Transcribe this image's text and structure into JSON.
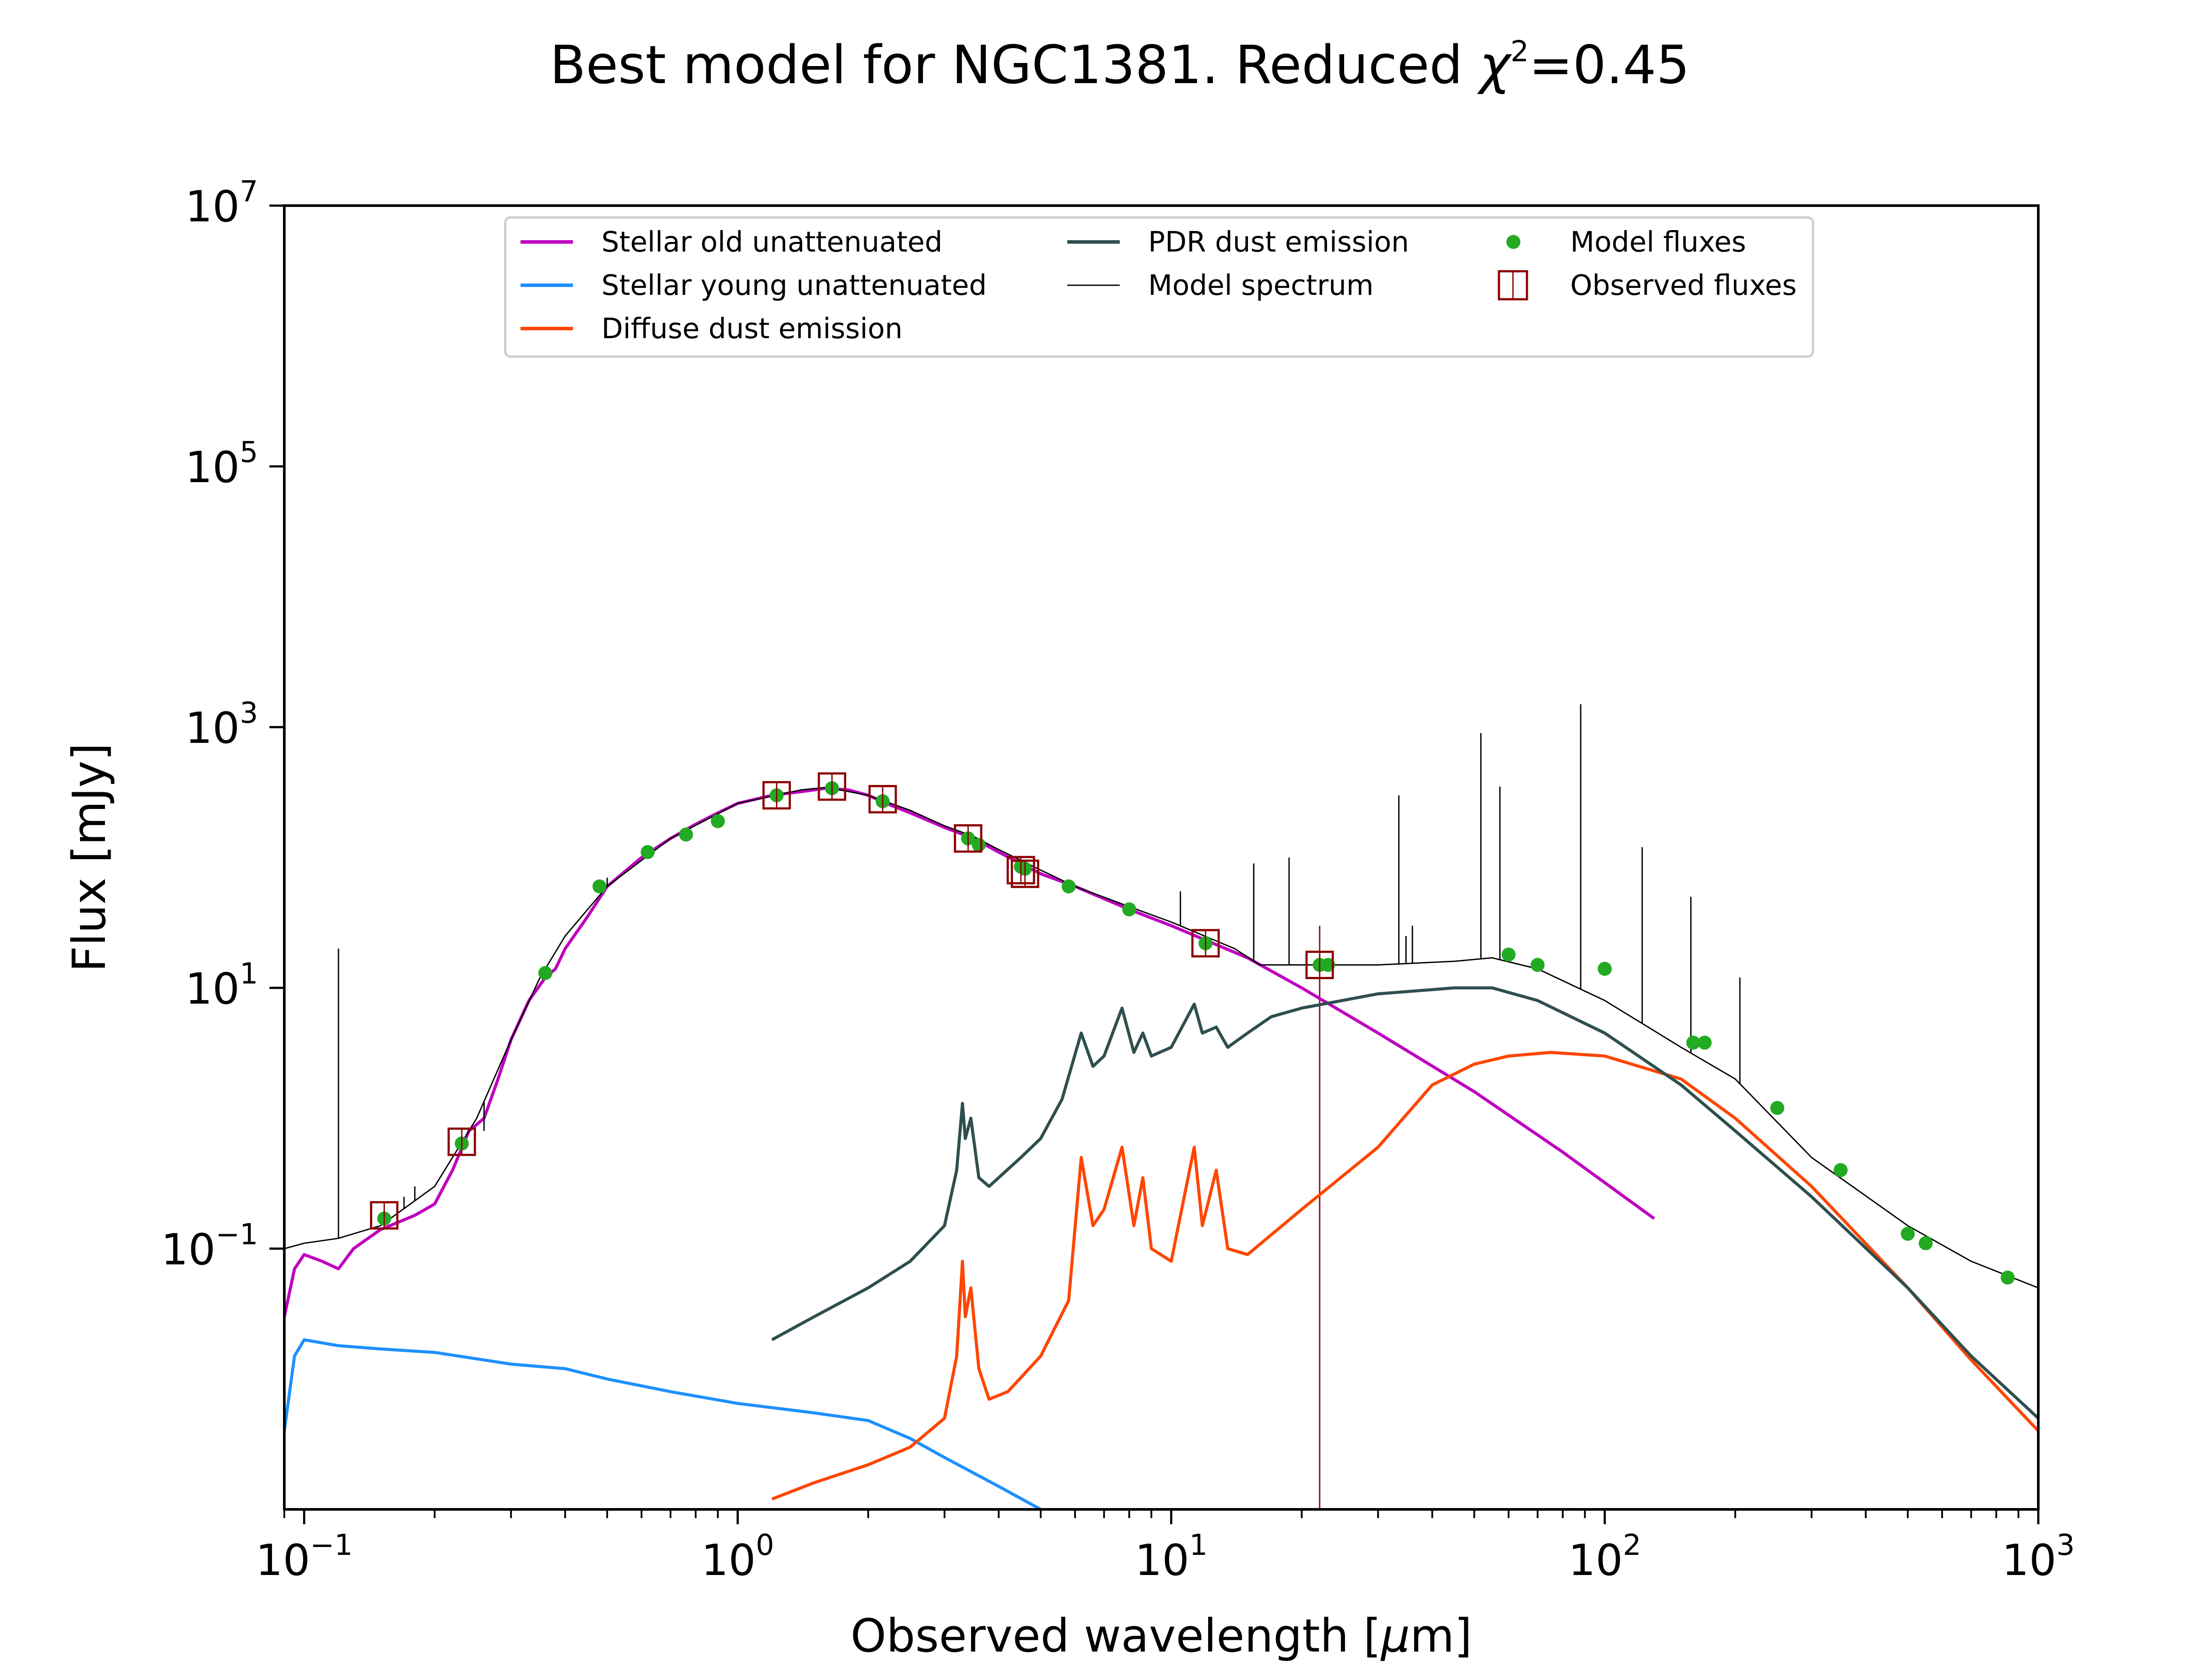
{
  "chart_data": {
    "type": "line",
    "title_text": "Best model for NGC1381. Reduced ",
    "title_symbol": "χ",
    "title_power": "2",
    "title_value": "=0.45",
    "xlabel_text": "Observed wavelength [",
    "xlabel_unit": "μ",
    "xlabel_rest": "m]",
    "ylabel": "Flux [mJy]",
    "x_scale": "log",
    "y_scale": "log",
    "xlim": [
      0.09,
      1000
    ],
    "ylim": [
      0.001,
      10000000
    ],
    "x_ticks": [
      {
        "base": "10",
        "exp": "−1",
        "value": 0.1
      },
      {
        "base": "10",
        "exp": "0",
        "value": 1
      },
      {
        "base": "10",
        "exp": "1",
        "value": 10
      },
      {
        "base": "10",
        "exp": "2",
        "value": 100
      },
      {
        "base": "10",
        "exp": "3",
        "value": 1000
      }
    ],
    "y_ticks": [
      {
        "base": "10",
        "exp": "−1",
        "value": 0.1
      },
      {
        "base": "10",
        "exp": "1",
        "value": 10
      },
      {
        "base": "10",
        "exp": "3",
        "value": 1000
      },
      {
        "base": "10",
        "exp": "5",
        "value": 100000
      },
      {
        "base": "10",
        "exp": "7",
        "value": 10000000
      }
    ],
    "grid": false,
    "legend_position": "top-center",
    "series": [
      {
        "name": "Stellar old unattenuated",
        "color": "#bf00bf",
        "points": [
          [
            0.09,
            0.03
          ],
          [
            0.095,
            0.07
          ],
          [
            0.1,
            0.09
          ],
          [
            0.11,
            0.08
          ],
          [
            0.12,
            0.07
          ],
          [
            0.13,
            0.1
          ],
          [
            0.15,
            0.14
          ],
          [
            0.18,
            0.18
          ],
          [
            0.2,
            0.22
          ],
          [
            0.22,
            0.4
          ],
          [
            0.24,
            0.8
          ],
          [
            0.26,
            1.0
          ],
          [
            0.28,
            2.0
          ],
          [
            0.3,
            4.0
          ],
          [
            0.33,
            8.0
          ],
          [
            0.36,
            12
          ],
          [
            0.38,
            14
          ],
          [
            0.4,
            20
          ],
          [
            0.45,
            35
          ],
          [
            0.5,
            60
          ],
          [
            0.6,
            100
          ],
          [
            0.7,
            140
          ],
          [
            0.8,
            180
          ],
          [
            0.9,
            220
          ],
          [
            1.0,
            260
          ],
          [
            1.2,
            300
          ],
          [
            1.4,
            320
          ],
          [
            1.6,
            340
          ],
          [
            1.8,
            330
          ],
          [
            2.0,
            300
          ],
          [
            2.2,
            260
          ],
          [
            2.5,
            220
          ],
          [
            3.0,
            170
          ],
          [
            3.5,
            140
          ],
          [
            4.0,
            110
          ],
          [
            4.5,
            90
          ],
          [
            5.0,
            75
          ],
          [
            6.0,
            60
          ],
          [
            8.0,
            40
          ],
          [
            10,
            30
          ],
          [
            15,
            17
          ],
          [
            20,
            10
          ],
          [
            30,
            4.5
          ],
          [
            50,
            1.6
          ],
          [
            80,
            0.55
          ],
          [
            130,
            0.17
          ]
        ]
      },
      {
        "name": "Stellar young unattenuated",
        "color": "#1e90ff",
        "points": [
          [
            0.09,
            0.004
          ],
          [
            0.095,
            0.015
          ],
          [
            0.1,
            0.02
          ],
          [
            0.12,
            0.018
          ],
          [
            0.15,
            0.017
          ],
          [
            0.2,
            0.016
          ],
          [
            0.3,
            0.013
          ],
          [
            0.4,
            0.012
          ],
          [
            0.5,
            0.01
          ],
          [
            0.7,
            0.008
          ],
          [
            1.0,
            0.0065
          ],
          [
            1.5,
            0.0055
          ],
          [
            2.0,
            0.0048
          ],
          [
            2.5,
            0.0035
          ],
          [
            3.0,
            0.0025
          ],
          [
            4.0,
            0.0015
          ],
          [
            5.0,
            0.001
          ]
        ]
      },
      {
        "name": "Diffuse dust emission",
        "color": "#ff4500",
        "points": [
          [
            1.2,
            0.0012
          ],
          [
            1.5,
            0.0016
          ],
          [
            2.0,
            0.0022
          ],
          [
            2.5,
            0.003
          ],
          [
            3.0,
            0.005
          ],
          [
            3.2,
            0.015
          ],
          [
            3.3,
            0.08
          ],
          [
            3.35,
            0.03
          ],
          [
            3.45,
            0.05
          ],
          [
            3.6,
            0.012
          ],
          [
            3.8,
            0.007
          ],
          [
            4.2,
            0.008
          ],
          [
            5.0,
            0.015
          ],
          [
            5.8,
            0.04
          ],
          [
            6.2,
            0.5
          ],
          [
            6.6,
            0.15
          ],
          [
            7.0,
            0.2
          ],
          [
            7.7,
            0.6
          ],
          [
            8.2,
            0.15
          ],
          [
            8.6,
            0.35
          ],
          [
            9.0,
            0.1
          ],
          [
            10,
            0.08
          ],
          [
            11.3,
            0.6
          ],
          [
            11.8,
            0.15
          ],
          [
            12.7,
            0.4
          ],
          [
            13.5,
            0.1
          ],
          [
            15,
            0.09
          ],
          [
            20,
            0.2
          ],
          [
            30,
            0.6
          ],
          [
            40,
            1.8
          ],
          [
            50,
            2.6
          ],
          [
            60,
            3.0
          ],
          [
            75,
            3.2
          ],
          [
            100,
            3.0
          ],
          [
            150,
            2.0
          ],
          [
            200,
            1.0
          ],
          [
            300,
            0.3
          ],
          [
            500,
            0.05
          ],
          [
            700,
            0.014
          ],
          [
            1000,
            0.004
          ]
        ]
      },
      {
        "name": "PDR dust emission",
        "color": "#2f4f4f",
        "points": [
          [
            1.2,
            0.02
          ],
          [
            1.5,
            0.03
          ],
          [
            2.0,
            0.05
          ],
          [
            2.5,
            0.08
          ],
          [
            3.0,
            0.15
          ],
          [
            3.2,
            0.4
          ],
          [
            3.3,
            1.3
          ],
          [
            3.35,
            0.7
          ],
          [
            3.45,
            1.0
          ],
          [
            3.6,
            0.35
          ],
          [
            3.8,
            0.3
          ],
          [
            4.5,
            0.5
          ],
          [
            5.0,
            0.7
          ],
          [
            5.6,
            1.4
          ],
          [
            6.2,
            4.5
          ],
          [
            6.6,
            2.5
          ],
          [
            7.0,
            3.0
          ],
          [
            7.7,
            7.0
          ],
          [
            8.2,
            3.2
          ],
          [
            8.6,
            4.5
          ],
          [
            9.0,
            3.0
          ],
          [
            10,
            3.5
          ],
          [
            11.3,
            7.5
          ],
          [
            11.8,
            4.5
          ],
          [
            12.7,
            5.0
          ],
          [
            13.5,
            3.5
          ],
          [
            15,
            4.5
          ],
          [
            17,
            6.0
          ],
          [
            20,
            7.0
          ],
          [
            30,
            9.0
          ],
          [
            45,
            10
          ],
          [
            55,
            10
          ],
          [
            70,
            8.0
          ],
          [
            100,
            4.5
          ],
          [
            150,
            1.8
          ],
          [
            200,
            0.8
          ],
          [
            300,
            0.25
          ],
          [
            500,
            0.05
          ],
          [
            700,
            0.015
          ],
          [
            1000,
            0.005
          ]
        ]
      },
      {
        "name": "Model spectrum",
        "color": "#000000",
        "points": [
          [
            0.09,
            0.1
          ],
          [
            0.1,
            0.11
          ],
          [
            0.12,
            0.12
          ],
          [
            0.15,
            0.15
          ],
          [
            0.2,
            0.3
          ],
          [
            0.25,
            1.0
          ],
          [
            0.3,
            4.0
          ],
          [
            0.35,
            12
          ],
          [
            0.4,
            25
          ],
          [
            0.5,
            60
          ],
          [
            0.7,
            140
          ],
          [
            1.0,
            260
          ],
          [
            1.4,
            330
          ],
          [
            1.6,
            345
          ],
          [
            2.0,
            300
          ],
          [
            2.5,
            230
          ],
          [
            3.0,
            175
          ],
          [
            3.5,
            145
          ],
          [
            4.0,
            115
          ],
          [
            4.5,
            95
          ],
          [
            5.0,
            80
          ],
          [
            6.0,
            60
          ],
          [
            8.0,
            42
          ],
          [
            10,
            32
          ],
          [
            14,
            20
          ],
          [
            16,
            15
          ],
          [
            20,
            15
          ],
          [
            30,
            15
          ],
          [
            45,
            16
          ],
          [
            55,
            17
          ],
          [
            70,
            14
          ],
          [
            100,
            8.0
          ],
          [
            150,
            3.5
          ],
          [
            200,
            2.0
          ],
          [
            300,
            0.5
          ],
          [
            500,
            0.15
          ],
          [
            700,
            0.08
          ],
          [
            1000,
            0.05
          ]
        ],
        "lines": [
          [
            0.12,
            20
          ],
          [
            0.17,
            0.25
          ],
          [
            0.18,
            0.3
          ],
          [
            0.26,
            0.8
          ],
          [
            0.37,
            16
          ],
          [
            0.5,
            70
          ],
          [
            10.5,
            55
          ],
          [
            15.5,
            90
          ],
          [
            18.7,
            100
          ],
          [
            33.5,
            300
          ],
          [
            34.8,
            25
          ],
          [
            36,
            30
          ],
          [
            51.8,
            900
          ],
          [
            57.3,
            350
          ],
          [
            88,
            1500
          ],
          [
            122,
            120
          ],
          [
            158,
            50
          ],
          [
            205,
            12
          ]
        ]
      },
      {
        "name": "Model fluxes",
        "color": "#22aa22",
        "points": [
          [
            0.153,
            0.17
          ],
          [
            0.231,
            0.64
          ],
          [
            0.36,
            13
          ],
          [
            0.48,
            60
          ],
          [
            0.62,
            110
          ],
          [
            0.76,
            150
          ],
          [
            0.9,
            190
          ],
          [
            1.23,
            300
          ],
          [
            1.65,
            340
          ],
          [
            2.16,
            270
          ],
          [
            3.4,
            140
          ],
          [
            3.6,
            125
          ],
          [
            4.5,
            85
          ],
          [
            4.6,
            82
          ],
          [
            5.8,
            60
          ],
          [
            8.0,
            40
          ],
          [
            12,
            22
          ],
          [
            22,
            15
          ],
          [
            23,
            15
          ],
          [
            60,
            18
          ],
          [
            70,
            15
          ],
          [
            100,
            14
          ],
          [
            160,
            3.8
          ],
          [
            170,
            3.8
          ],
          [
            250,
            1.2
          ],
          [
            350,
            0.4
          ],
          [
            500,
            0.13
          ],
          [
            550,
            0.11
          ],
          [
            850,
            0.06
          ]
        ]
      },
      {
        "name": "Observed fluxes",
        "color": "#8b0000",
        "points": [
          [
            0.153,
            0.18
          ],
          [
            0.231,
            0.66
          ],
          [
            1.23,
            300
          ],
          [
            1.65,
            350
          ],
          [
            2.16,
            280
          ],
          [
            3.4,
            140
          ],
          [
            4.5,
            80
          ],
          [
            4.6,
            75
          ],
          [
            12,
            22
          ],
          [
            22,
            15
          ]
        ]
      }
    ],
    "vertical_line": {
      "x": 22,
      "color": "#8b0000"
    },
    "legend_entries": [
      "Stellar old unattenuated",
      "Stellar young unattenuated",
      "Diffuse dust emission",
      "PDR dust emission",
      "Model spectrum",
      "Model fluxes",
      "Observed fluxes"
    ]
  }
}
